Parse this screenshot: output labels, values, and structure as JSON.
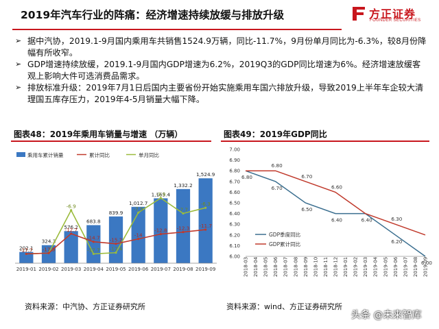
{
  "header": {
    "title": "2019年汽车行业的阵痛：经济增速持续放缓与排放升级"
  },
  "logo": {
    "cn": "方正证券",
    "en": "FOUNDER SECURITIES",
    "color": "#c8161d"
  },
  "bullets": [
    "据中汽协，2019.1-9月国内乘用车共销售1524.9万辆，同比-11.7%，9月份单月同比为-6.3%，较8月份降幅有所收窄。",
    "GDP增速持续放缓，2019.1-9月国内GDP增速为6.2%，2019Q3的GDP同比增速为6%。经济增速放缓客观上影响大件可选消费品需求。",
    "排放标准升级：2019年7月1日后国内主要省份开始实施乘用车国六排放升级，导致2019上半年车企较大清理国五库存压力，2019年4-5月销量大幅下降。"
  ],
  "figure48": {
    "title": "图表48：2019年乘用车销量与增速 （万辆）",
    "source": "资料来源：中汽协、方正证券研究所"
  },
  "figure49": {
    "title": "图表49：2019年GDP同比",
    "source": "资料来源：wind、方正证券研究所"
  },
  "watermark": "头条 @未来智库",
  "chart_data": [
    {
      "type": "bar",
      "title": "图表48：2019年乘用车销量与增速 （万辆）",
      "categories": [
        "2019-01",
        "2019-02",
        "2019-03",
        "2019-04",
        "2019-05",
        "2019-06",
        "2019-07",
        "2019-08",
        "2019-09"
      ],
      "series": [
        {
          "name": "乘用车累计销量",
          "type": "bar",
          "color": "#3b78c2",
          "values": [
            202.1,
            324.3,
            576.2,
            683.8,
            839.9,
            1012.7,
            1165.4,
            1332.2,
            1524.9
          ],
          "labels": [
            "202.1",
            "324.3",
            "576.2",
            "683.8",
            "839.9",
            "1,012.7",
            "1,165.4",
            "1,332.2",
            "1,524.9"
          ]
        },
        {
          "name": "累计同比",
          "type": "line",
          "color": "#c0392b",
          "values": [
            -17.7,
            -17.5,
            -12.7,
            -14.7,
            -15.2,
            -14.0,
            -12.8,
            -12.3,
            -11.7
          ]
        },
        {
          "name": "单月同比",
          "type": "line",
          "color": "#9bbb3c",
          "values": [
            -17.7,
            -17.5,
            -6.9,
            -17.7,
            -17.4,
            -7.5,
            -3.9,
            -7.7,
            -6.3
          ]
        }
      ],
      "legend": "top"
    },
    {
      "type": "line",
      "title": "图表49：2019年GDP同比",
      "x": [
        "2018-03",
        "2018-04",
        "2018-05",
        "2018-06",
        "2018-07",
        "2018-08",
        "2018-09",
        "2018-10",
        "2018-11",
        "2018-12",
        "2019-01",
        "2019-02",
        "2019-03",
        "2019-04",
        "2019-05",
        "2019-06",
        "2019-07",
        "2019-08",
        "2019-09"
      ],
      "yticks": [
        "6.00",
        "6.10",
        "6.20",
        "6.30",
        "6.40",
        "6.50",
        "6.60",
        "6.70",
        "6.80",
        "6.90",
        "7.00"
      ],
      "ylim": [
        6.0,
        7.0
      ],
      "series": [
        {
          "name": "GDP季度同比",
          "color": "#3a6e8f",
          "points": [
            [
              "2018-03",
              6.8
            ],
            [
              "2018-06",
              6.7
            ],
            [
              "2018-09",
              6.5
            ],
            [
              "2018-12",
              6.4
            ],
            [
              "2019-03",
              6.4
            ],
            [
              "2019-06",
              6.2
            ],
            [
              "2019-09",
              6.0
            ]
          ],
          "labels": [
            [
              "2018-03",
              "6.80"
            ],
            [
              "2018-06",
              "6.70"
            ],
            [
              "2018-09",
              "6.50"
            ],
            [
              "2018-12",
              "6.40"
            ],
            [
              "2019-03",
              "6.40"
            ],
            [
              "2019-06",
              "6.20"
            ],
            [
              "2019-09",
              "6.00"
            ]
          ]
        },
        {
          "name": "GDP累计同比",
          "color": "#c0392b",
          "points": [
            [
              "2018-03",
              6.8
            ],
            [
              "2018-06",
              6.8
            ],
            [
              "2018-09",
              6.7
            ],
            [
              "2018-12",
              6.6
            ],
            [
              "2019-03",
              6.4
            ],
            [
              "2019-06",
              6.3
            ],
            [
              "2019-09",
              6.2
            ]
          ],
          "labels": [
            [
              "2018-06",
              "6.80"
            ],
            [
              "2018-09",
              "6.70"
            ],
            [
              "2018-12",
              "6.60"
            ],
            [
              "2019-06",
              "6.30"
            ]
          ]
        }
      ],
      "legend": "bottom-left"
    }
  ]
}
